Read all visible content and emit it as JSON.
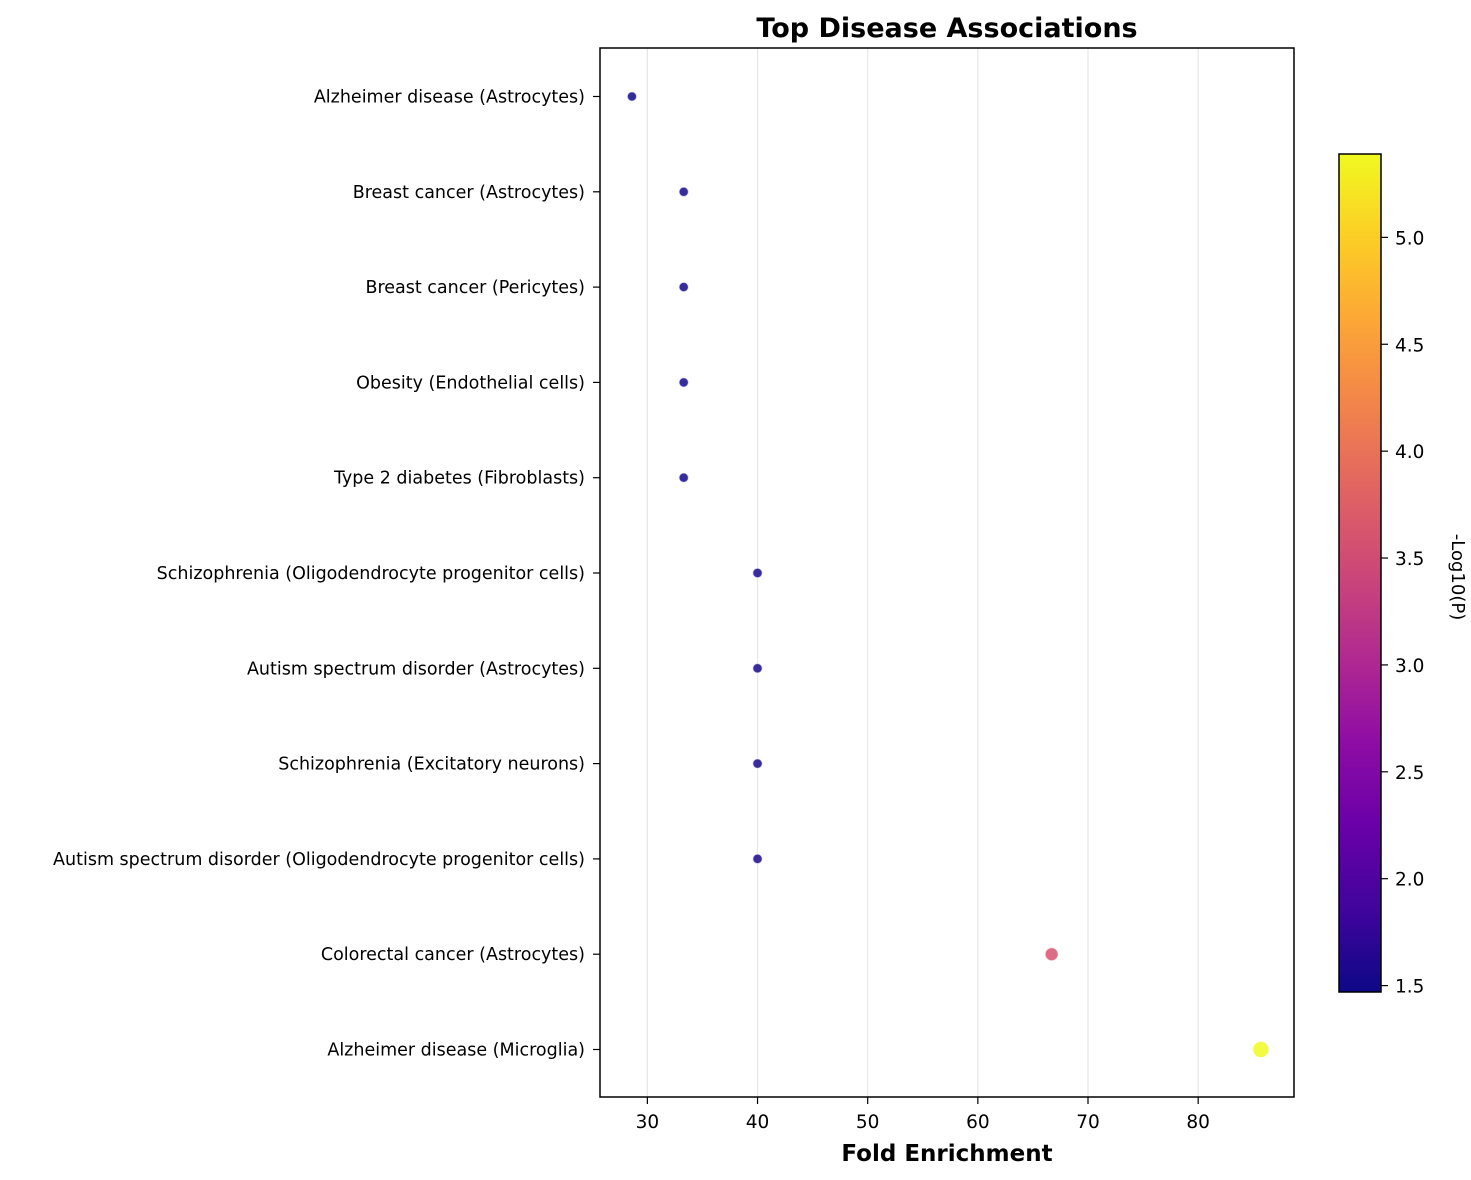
{
  "chart_data": {
    "type": "scatter",
    "title": "Top Disease Associations",
    "xlabel": "Fold Enrichment",
    "ylabel": "",
    "xlim": [
      25.7,
      88.7
    ],
    "xticks": [
      30,
      40,
      50,
      60,
      70,
      80
    ],
    "grid": "vertical",
    "colormap": "plasma",
    "colorbar": {
      "label": "-Log10(P)",
      "range": [
        1.47,
        5.39
      ],
      "ticks": [
        "1.5",
        "2.0",
        "2.5",
        "3.0",
        "3.5",
        "4.0",
        "4.5",
        "5.0"
      ]
    },
    "points": [
      {
        "label": "Alzheimer disease (Astrocytes)",
        "fold_enrichment": 28.6,
        "neg_log10_p": 1.47
      },
      {
        "label": "Breast cancer (Astrocytes)",
        "fold_enrichment": 33.3,
        "neg_log10_p": 1.5
      },
      {
        "label": "Breast cancer (Pericytes)",
        "fold_enrichment": 33.3,
        "neg_log10_p": 1.5
      },
      {
        "label": "Obesity (Endothelial cells)",
        "fold_enrichment": 33.3,
        "neg_log10_p": 1.5
      },
      {
        "label": "Type 2 diabetes (Fibroblasts)",
        "fold_enrichment": 33.3,
        "neg_log10_p": 1.5
      },
      {
        "label": "Schizophrenia (Oligodendrocyte progenitor cells)",
        "fold_enrichment": 40.0,
        "neg_log10_p": 1.55
      },
      {
        "label": "Autism spectrum disorder (Astrocytes)",
        "fold_enrichment": 40.0,
        "neg_log10_p": 1.55
      },
      {
        "label": "Schizophrenia (Excitatory neurons)",
        "fold_enrichment": 40.0,
        "neg_log10_p": 1.55
      },
      {
        "label": "Autism spectrum disorder (Oligodendrocyte progenitor cells)",
        "fold_enrichment": 40.0,
        "neg_log10_p": 1.55
      },
      {
        "label": "Colorectal cancer (Astrocytes)",
        "fold_enrichment": 66.7,
        "neg_log10_p": 3.6
      },
      {
        "label": "Alzheimer disease (Microglia)",
        "fold_enrichment": 85.7,
        "neg_log10_p": 5.39
      }
    ]
  }
}
